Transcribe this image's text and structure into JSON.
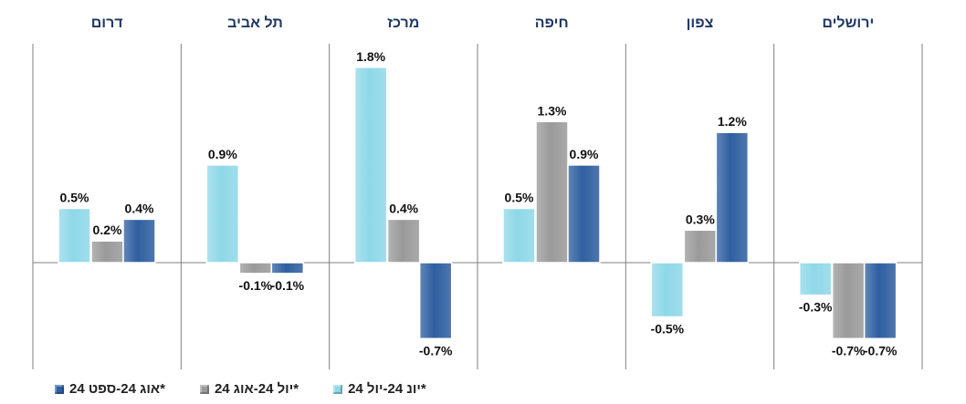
{
  "chart_data": {
    "type": "bar",
    "categories": [
      "ירושלים",
      "צפון",
      "חיפה",
      "מרכז",
      "תל אביב",
      "דרום"
    ],
    "series": [
      {
        "name": "יונ 24-יול 24*",
        "color": "#8fd8e8",
        "values": [
          -0.3,
          -0.5,
          0.5,
          1.8,
          0.9,
          0.5
        ]
      },
      {
        "name": "יול 24-אוג 24*",
        "color": "#9a9a9a",
        "values": [
          -0.7,
          0.3,
          1.3,
          0.4,
          -0.1,
          0.2
        ]
      },
      {
        "name": "אוג 24-ספט 24*",
        "color": "#2f5fa0",
        "values": [
          -0.7,
          1.2,
          0.9,
          -0.7,
          -0.1,
          0.4
        ]
      }
    ],
    "value_suffix": "%",
    "ylim": [
      -0.9,
      2.0
    ],
    "title_color": "#1f3864",
    "axis_color": "#7f7f7f",
    "legend_position": "bottom-left",
    "category_order": "right-to-left"
  }
}
